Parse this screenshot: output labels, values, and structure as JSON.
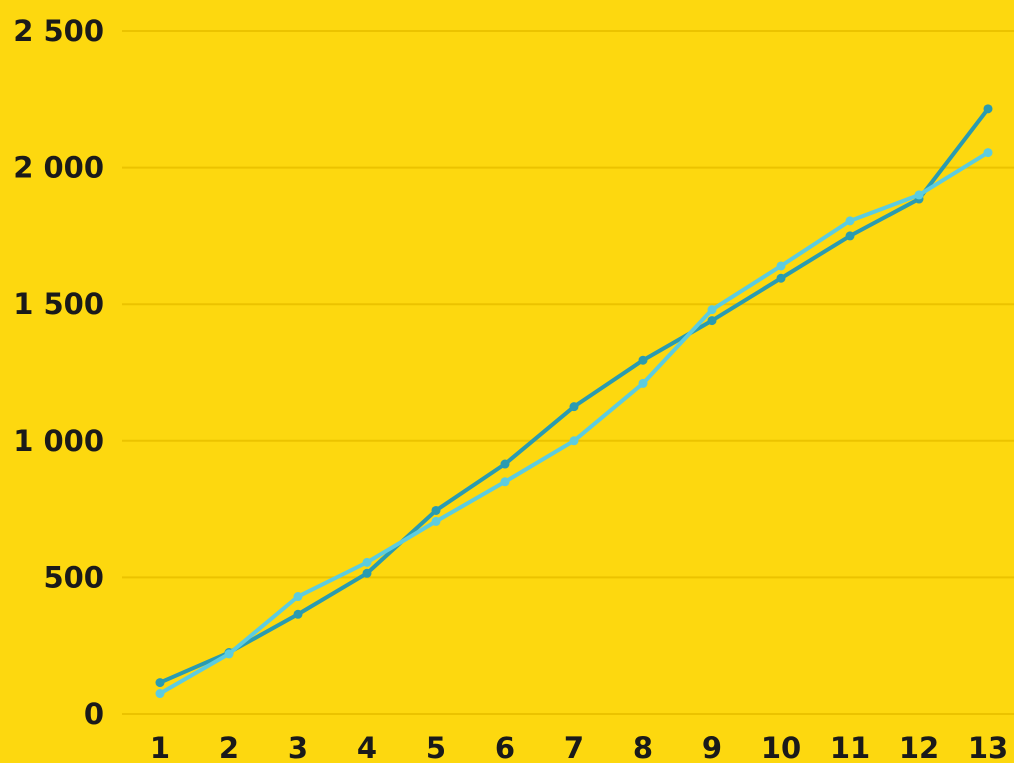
{
  "chart_data": {
    "type": "line",
    "title": "",
    "xlabel": "",
    "ylabel": "",
    "background": "#FDD80F",
    "grid": true,
    "legend": "none",
    "x": [
      1,
      2,
      3,
      4,
      5,
      6,
      7,
      8,
      9,
      10,
      11,
      12,
      13
    ],
    "x_tick_labels": [
      "1",
      "2",
      "3",
      "4",
      "5",
      "6",
      "7",
      "8",
      "9",
      "10",
      "11",
      "12",
      "13"
    ],
    "ylim": [
      0,
      2500
    ],
    "y_ticks": [
      0,
      500,
      1000,
      1500,
      2000,
      2500
    ],
    "y_tick_labels": [
      "0",
      "500",
      "1 000",
      "1 500",
      "2 000",
      "2 500"
    ],
    "series": [
      {
        "color": "#2A9BB0",
        "values": [
          115,
          225,
          365,
          515,
          745,
          915,
          1125,
          1295,
          1440,
          1595,
          1750,
          1885,
          2215
        ]
      },
      {
        "color": "#5DCCDF",
        "values": [
          75,
          220,
          430,
          555,
          705,
          850,
          1000,
          1210,
          1480,
          1640,
          1805,
          1900,
          2055
        ]
      }
    ]
  }
}
